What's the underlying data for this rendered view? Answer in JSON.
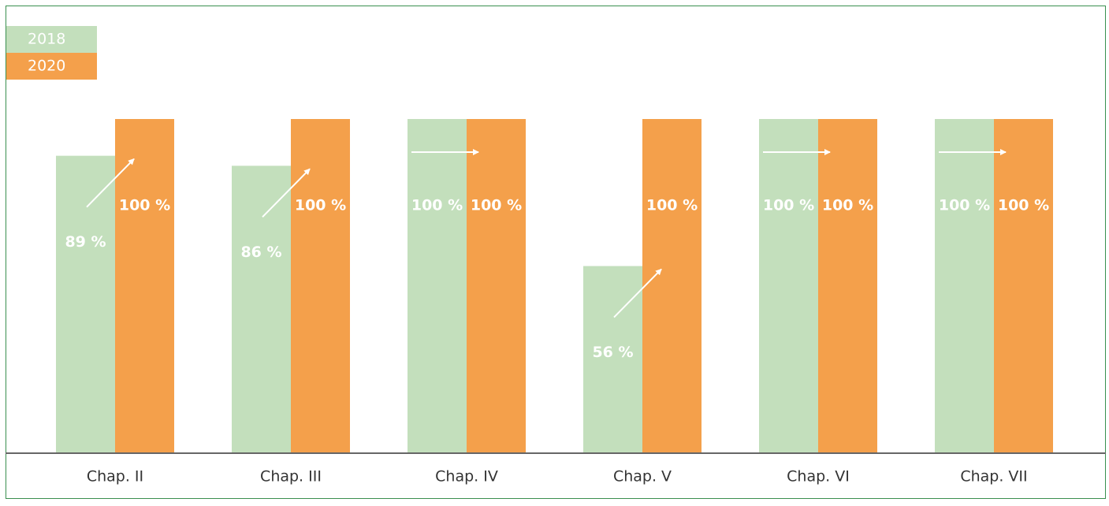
{
  "chart_data": {
    "type": "bar",
    "categories": [
      "Chap. II",
      "Chap. III",
      "Chap. IV",
      "Chap. V",
      "Chap. VI",
      "Chap. VII"
    ],
    "series": [
      {
        "name": "2018",
        "color": "#c3dfbc",
        "values": [
          89,
          86,
          100,
          56,
          100,
          100
        ],
        "value_labels": [
          "89 %",
          "86 %",
          "100 %",
          "56 %",
          "100 %",
          "100 %"
        ]
      },
      {
        "name": "2020",
        "color": "#f4a04b",
        "values": [
          100,
          100,
          100,
          100,
          100,
          100
        ],
        "value_labels": [
          "100 %",
          "100 %",
          "100 %",
          "100 %",
          "100 %",
          "100 %"
        ]
      }
    ],
    "ylim": [
      0,
      100
    ]
  }
}
